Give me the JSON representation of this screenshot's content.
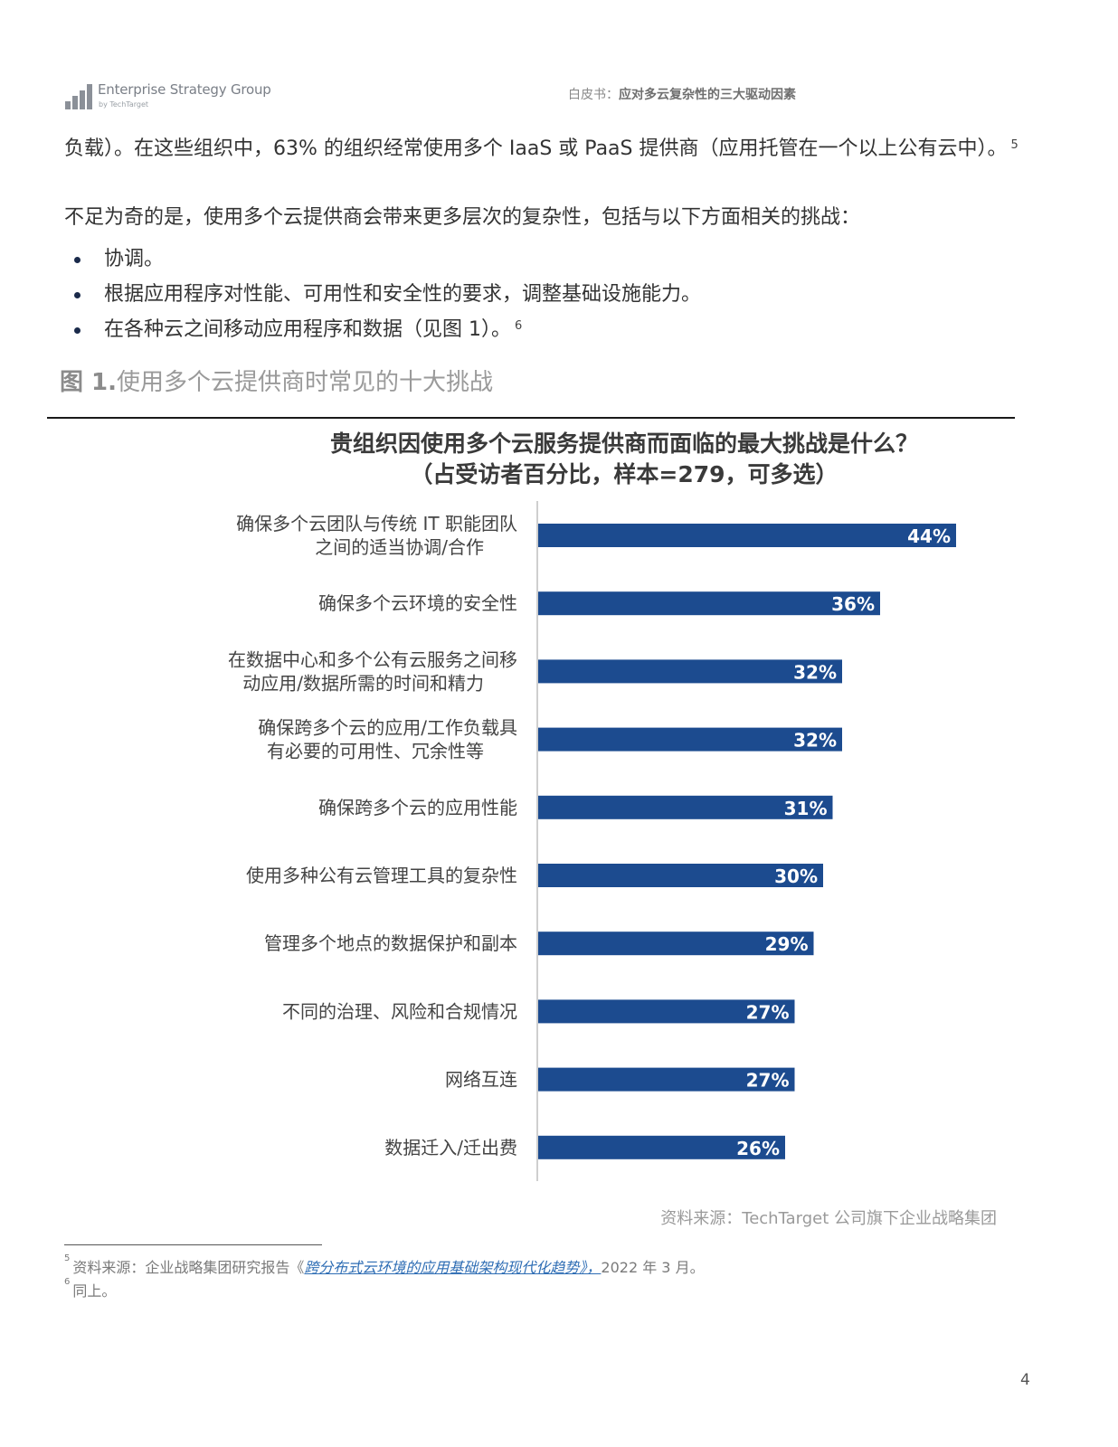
{
  "header": {
    "logo_name": "Enterprise Strategy Group",
    "logo_sub": "by TechTarget",
    "doc_type": "白皮书：",
    "doc_title": "应对多云复杂性的三大驱动因素"
  },
  "body": {
    "para1": "负载）。在这些组织中，63% 的组织经常使用多个 IaaS 或 PaaS 提供商（应用托管在一个以上公有云中）。",
    "para1_sup": "5",
    "para2": "不足为奇的是，使用多个云提供商会带来更多层次的复杂性，包括与以下方面相关的挑战：",
    "bullets": [
      {
        "text": "协调。",
        "sup": ""
      },
      {
        "text": "根据应用程序对性能、可用性和安全性的要求，调整基础设施能力。",
        "sup": ""
      },
      {
        "text": "在各种云之间移动应用程序和数据（见图 1）。",
        "sup": "6"
      }
    ]
  },
  "figure": {
    "label": "图 1.",
    "title": "使用多个云提供商时常见的十大挑战"
  },
  "chart_data": {
    "type": "bar",
    "orientation": "horizontal",
    "title": "贵组织因使用多个云服务提供商而面临的最大挑战是什么？",
    "subtitle": "（占受访者百分比，样本=279，可多选）",
    "categories": [
      [
        "确保多个云团队与传统 IT 职能团队",
        "之间的适当协调/合作"
      ],
      [
        "确保多个云环境的安全性"
      ],
      [
        "在数据中心和多个公有云服务之间移",
        "动应用/数据所需的时间和精力"
      ],
      [
        "确保跨多个云的应用/工作负载具",
        "有必要的可用性、冗余性等"
      ],
      [
        "确保跨多个云的应用性能"
      ],
      [
        "使用多种公有云管理工具的复杂性"
      ],
      [
        "管理多个地点的数据保护和副本"
      ],
      [
        "不同的治理、风险和合规情况"
      ],
      [
        "网络互连"
      ],
      [
        "数据迁入/迁出费"
      ]
    ],
    "values": [
      44,
      36,
      32,
      32,
      31,
      30,
      29,
      27,
      27,
      26
    ],
    "value_labels": [
      "44%",
      "36%",
      "32%",
      "32%",
      "31%",
      "30%",
      "29%",
      "27%",
      "27%",
      "26%"
    ],
    "unit": "%",
    "bar_color": "#1c4b8f",
    "label_color": "#ffffff",
    "axis_color": "#cfcfcf"
  },
  "source": "资料来源：TechTarget 公司旗下企业战略集团",
  "footnotes": [
    {
      "num": "5",
      "prefix": "资料来源：企业战略集团研究报告《",
      "link": "跨分布式云环境的应用基础架构现代化趋势》，",
      "suffix": "2022 年 3 月。"
    },
    {
      "num": "6",
      "prefix": "同上。",
      "link": "",
      "suffix": ""
    }
  ],
  "page_number": "4"
}
